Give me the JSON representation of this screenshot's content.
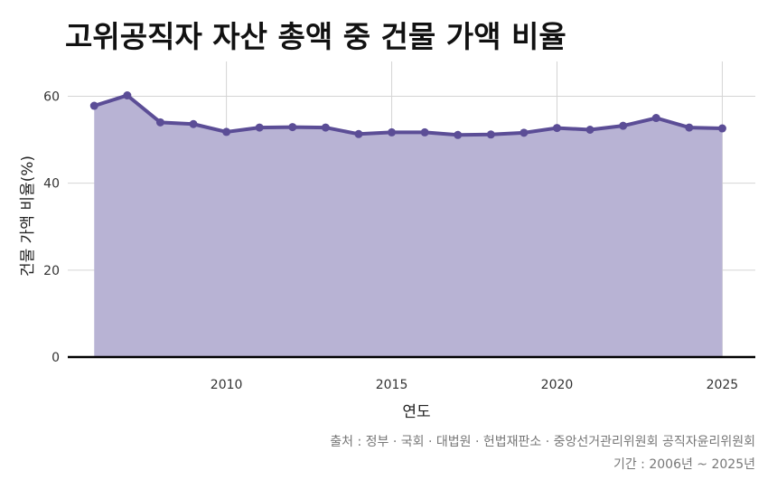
{
  "title": "고위공직자 자산 총액 중 건물 가액 비율",
  "source_line": "출처 : 정부 · 국회 · 대법원 · 헌법재판소 · 중앙선거관리위원회 공직자윤리위원회",
  "period_line": "기간 : 2006년 ~ 2025년",
  "colors": {
    "line": "#5b4d96",
    "fill": "#b8b3d4",
    "grid": "#d4d4d4",
    "zero": "#000000"
  },
  "chart_data": {
    "type": "area",
    "xlabel": "연도",
    "ylabel": "건물 가액 비율(%)",
    "x": [
      2006,
      2007,
      2008,
      2009,
      2010,
      2011,
      2012,
      2013,
      2014,
      2015,
      2016,
      2017,
      2018,
      2019,
      2020,
      2021,
      2022,
      2023,
      2024,
      2025
    ],
    "values": [
      57.8,
      60.2,
      54.0,
      53.6,
      51.8,
      52.8,
      52.9,
      52.8,
      51.3,
      51.7,
      51.7,
      51.1,
      51.2,
      51.6,
      52.7,
      52.3,
      53.2,
      55.0,
      52.8,
      52.6
    ],
    "xticks": [
      2010,
      2015,
      2020,
      2025
    ],
    "yticks": [
      0,
      20,
      40,
      60
    ],
    "xlim": [
      2005.2,
      2026
    ],
    "ylim": [
      0,
      68
    ],
    "grid": true
  }
}
